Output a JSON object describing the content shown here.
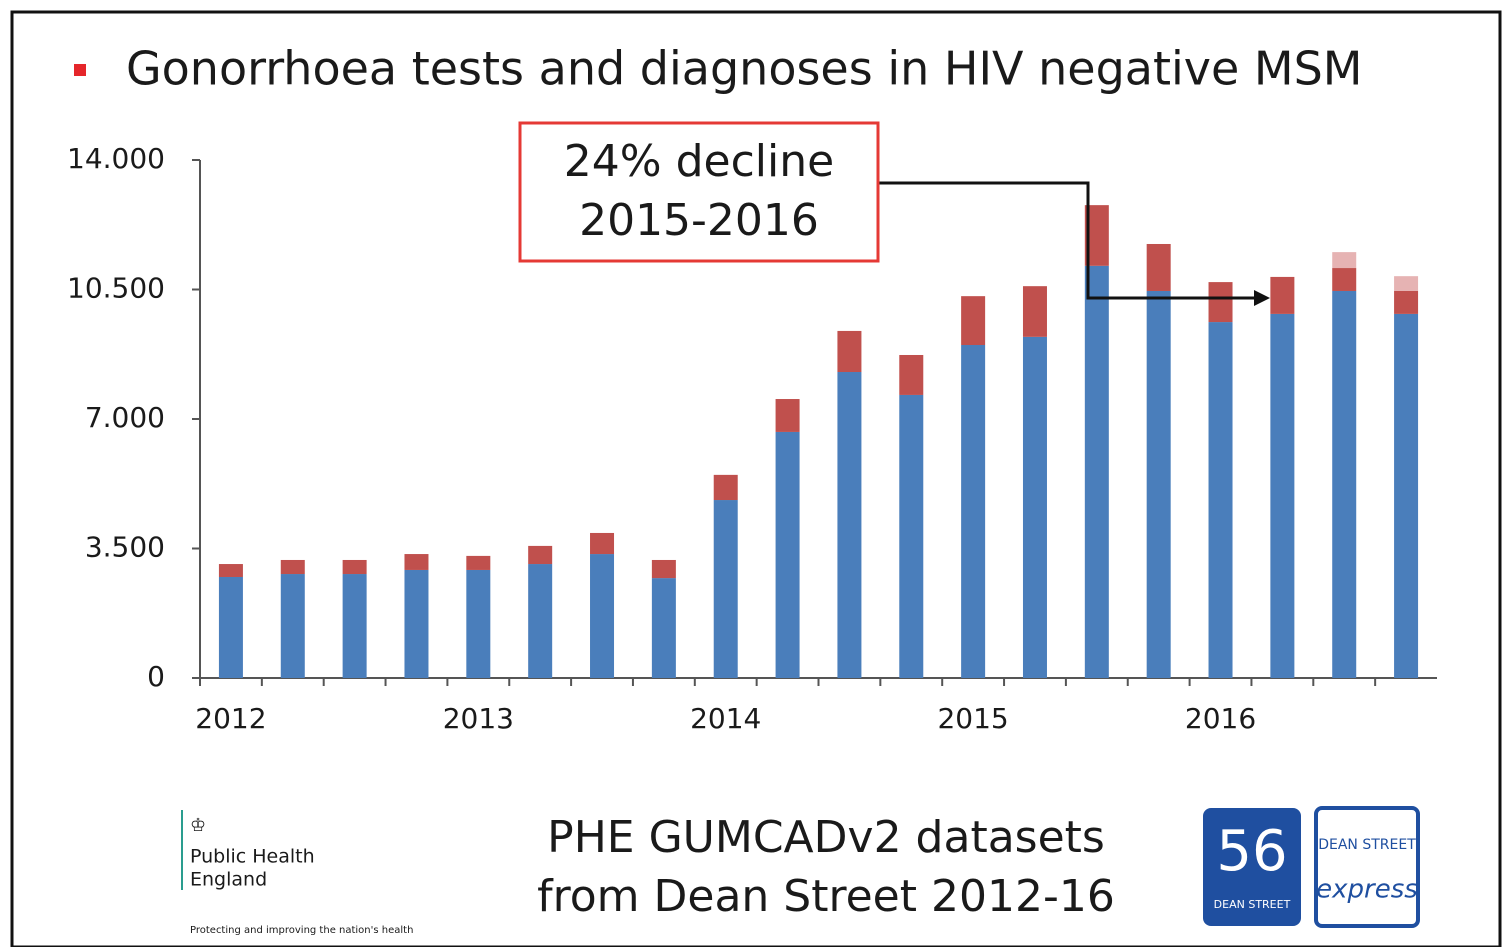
{
  "chart_data": {
    "type": "stacked_bar",
    "title": "Gonorrhoea tests and diagnoses in HIV negative MSM",
    "annotation": [
      "24% decline",
      "2015-2016"
    ],
    "source": [
      "PHE GUMCADv2 datasets",
      "from Dean Street 2012-16"
    ],
    "logos": {
      "phe": [
        "Public Health",
        "England"
      ],
      "phe_tagline": "Protecting and improving the nation's health",
      "dean_street": "56",
      "dean_street_sub": "DEAN STREET",
      "express": [
        "DEAN STREET",
        "express"
      ]
    },
    "categories": [
      "2012",
      null,
      null,
      null,
      "2013",
      null,
      null,
      null,
      "2014",
      null,
      null,
      null,
      "2015",
      null,
      null,
      null,
      "2016",
      null,
      null,
      null
    ],
    "series": [
      {
        "color": "#4a7ebb",
        "values": [
          2730,
          2810,
          2810,
          2920,
          2920,
          3080,
          3350,
          2700,
          4810,
          6650,
          8270,
          7650,
          9000,
          9220,
          11140,
          10460,
          9620,
          9840,
          10460,
          9840
        ]
      },
      {
        "color": "#c0504d",
        "values": [
          350,
          380,
          380,
          430,
          380,
          490,
          570,
          490,
          680,
          890,
          1110,
          1080,
          1320,
          1370,
          1640,
          1270,
          1080,
          1000,
          620,
          620
        ]
      },
      {
        "color": "#e6b3b3",
        "values": [
          null,
          null,
          null,
          null,
          null,
          null,
          null,
          null,
          null,
          null,
          null,
          null,
          null,
          null,
          null,
          null,
          null,
          null,
          430,
          400
        ]
      }
    ],
    "ylim": [
      0,
      14000
    ],
    "yticks": [
      0,
      {
        "value": 3500,
        "label": "3.500"
      },
      {
        "value": 7000,
        "label": "7.000"
      },
      {
        "value": 10500,
        "label": "10.500"
      },
      {
        "value": 14000,
        "label": "14.000"
      }
    ]
  }
}
